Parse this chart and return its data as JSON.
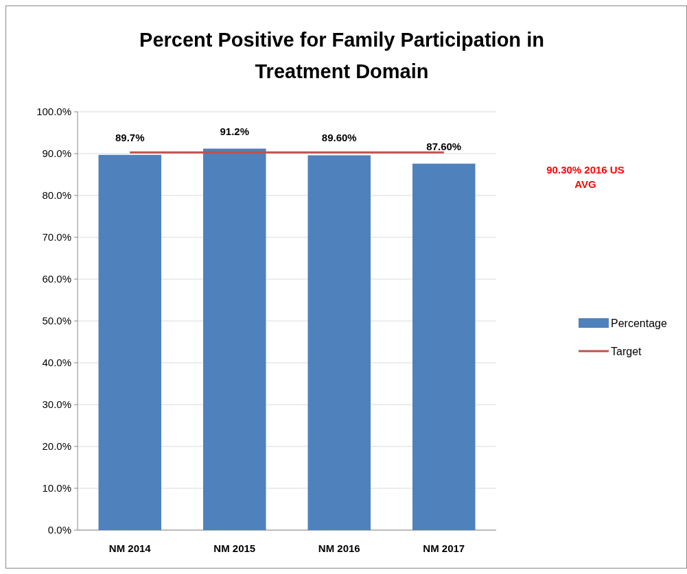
{
  "chart_data": {
    "type": "bar",
    "title": "Percent Positive for Family Participation in Treatment Domain",
    "categories": [
      "NM 2014",
      "NM 2015",
      "NM 2016",
      "NM 2017"
    ],
    "series": [
      {
        "name": "Percentage",
        "color": "#4f81bd",
        "values": [
          89.7,
          91.2,
          89.6,
          87.6
        ],
        "value_labels": [
          "89.7%",
          "91.2%",
          "89.60%",
          "87.60%"
        ]
      },
      {
        "name": "Target",
        "type": "line",
        "color": "#c0504d",
        "values": [
          90.3,
          90.3,
          90.3,
          90.3
        ]
      }
    ],
    "ylim": [
      0,
      100
    ],
    "yticks": [
      {
        "value": 0,
        "label": "0.0%"
      },
      {
        "value": 10,
        "label": "10.0%"
      },
      {
        "value": 20,
        "label": "20.0%"
      },
      {
        "value": 30,
        "label": "30.0%"
      },
      {
        "value": 40,
        "label": "40.0%"
      },
      {
        "value": 50,
        "label": "50.0%"
      },
      {
        "value": 60,
        "label": "60.0%"
      },
      {
        "value": 70,
        "label": "70.0%"
      },
      {
        "value": 80,
        "label": "80.0%"
      },
      {
        "value": 90,
        "label": "90.0%"
      },
      {
        "value": 100,
        "label": "100.0%"
      }
    ],
    "grid": "y",
    "legend": "right",
    "marker": "none",
    "annotations": [
      "90.30% 2016 US AVG"
    ]
  }
}
